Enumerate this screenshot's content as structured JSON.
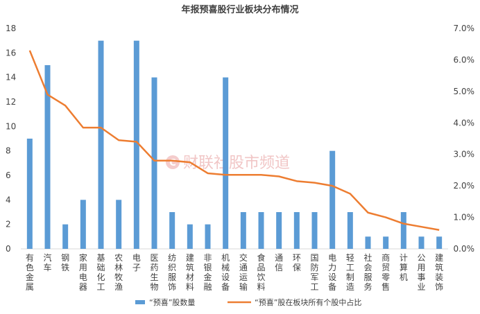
{
  "chart_data": {
    "type": "bar",
    "title": "年报预喜股行业板块分布情况",
    "categories": [
      "有色金属",
      "汽车",
      "钢铁",
      "家用电器",
      "基础化工",
      "农林牧渔",
      "电子",
      "医药生物",
      "纺织服饰",
      "建筑材料",
      "非银金融",
      "机械设备",
      "交通运输",
      "食品饮料",
      "通信",
      "环保",
      "国防军工",
      "电力设备",
      "轻工制造",
      "社会服务",
      "商贸零售",
      "计算机",
      "公用事业",
      "建筑装饰"
    ],
    "series": [
      {
        "name": "“预喜”股数量",
        "type": "bar",
        "axis": "left",
        "color": "#5b9bd5",
        "values": [
          9,
          15,
          2,
          4,
          17,
          4,
          17,
          14,
          3,
          2,
          2,
          14,
          3,
          3,
          3,
          3,
          3,
          8,
          3,
          1,
          1,
          3,
          1,
          1
        ]
      },
      {
        "name": "“预喜”股在板块所有个股中占比",
        "type": "line",
        "axis": "right",
        "color": "#ed7d31",
        "values": [
          6.3,
          4.9,
          4.55,
          3.85,
          3.85,
          3.45,
          3.4,
          2.8,
          2.8,
          2.75,
          2.4,
          2.35,
          2.35,
          2.35,
          2.3,
          2.15,
          2.1,
          2.0,
          1.75,
          1.15,
          1.0,
          0.8,
          0.7,
          0.6
        ]
      }
    ],
    "ylim_left": [
      0,
      18
    ],
    "yticks_left": [
      "0",
      "2",
      "4",
      "6",
      "8",
      "10",
      "12",
      "14",
      "16",
      "18"
    ],
    "ylim_right": [
      0,
      7
    ],
    "yticks_right": [
      "0.0%",
      "1.0%",
      "2.0%",
      "3.0%",
      "4.0%",
      "5.0%",
      "6.0%",
      "7.0%"
    ],
    "grid": false,
    "legend": "bottom"
  },
  "watermark": {
    "logo_letter": "C",
    "text": "财联社股市频道"
  }
}
